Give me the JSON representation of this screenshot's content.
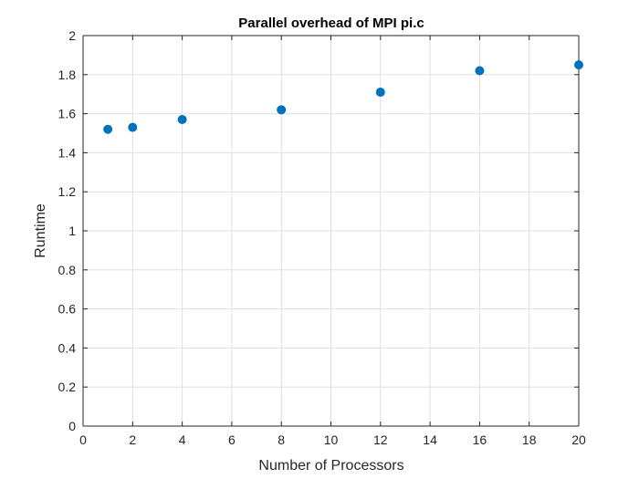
{
  "chart_data": {
    "type": "scatter",
    "title": "Parallel overhead of MPI pi.c",
    "xlabel": "Number of Processors",
    "ylabel": "Runtime",
    "xlim": [
      0,
      20
    ],
    "ylim": [
      0,
      2
    ],
    "xticks": [
      0,
      2,
      4,
      6,
      8,
      10,
      12,
      14,
      16,
      18,
      20
    ],
    "yticks": [
      0,
      0.2,
      0.4,
      0.6,
      0.8,
      1,
      1.2,
      1.4,
      1.6,
      1.8,
      2
    ],
    "xtick_labels": [
      "0",
      "2",
      "4",
      "6",
      "8",
      "10",
      "12",
      "14",
      "16",
      "18",
      "20"
    ],
    "ytick_labels": [
      "0",
      "0.2",
      "0.4",
      "0.6",
      "0.8",
      "1",
      "1.2",
      "1.4",
      "1.6",
      "1.8",
      "2"
    ],
    "grid": true,
    "series": [
      {
        "x": [
          1,
          2,
          4,
          8,
          12,
          16,
          20
        ],
        "y": [
          1.52,
          1.53,
          1.57,
          1.62,
          1.71,
          1.82,
          1.85
        ],
        "color": "#0072BD"
      }
    ]
  }
}
